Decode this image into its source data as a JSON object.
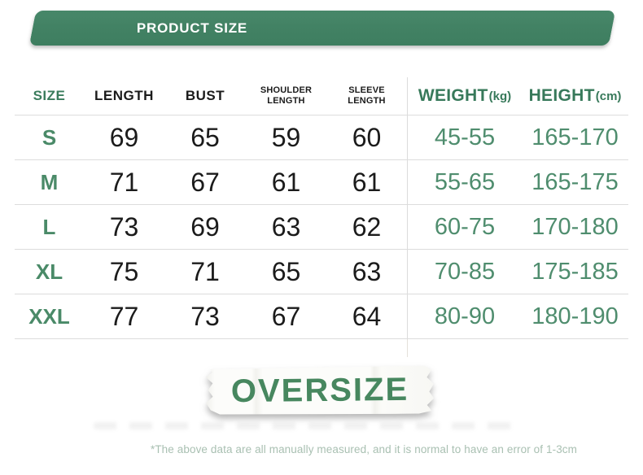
{
  "banner": {
    "title": "PRODUCT SIZE"
  },
  "table_headers": {
    "size": "SIZE",
    "length": "LENGTH",
    "bust": "BUST",
    "shoulder_line1": "SHOULDER",
    "shoulder_line2": "LENGTH",
    "sleeve_line1": "SLEEVE",
    "sleeve_line2": "LENGTH",
    "weight": "WEIGHT",
    "weight_unit": "(kg)",
    "height": "HEIGHT",
    "height_unit": "(cm)"
  },
  "chart_data": {
    "type": "table",
    "title": "PRODUCT SIZE",
    "columns": [
      "SIZE",
      "LENGTH",
      "BUST",
      "SHOULDER LENGTH",
      "SLEEVE LENGTH",
      "WEIGHT(kg)",
      "HEIGHT(cm)"
    ],
    "rows": [
      [
        "S",
        69,
        65,
        59,
        60,
        "45-55",
        "165-170"
      ],
      [
        "M",
        71,
        67,
        61,
        61,
        "55-65",
        "165-175"
      ],
      [
        "L",
        73,
        69,
        63,
        62,
        "60-75",
        "170-180"
      ],
      [
        "XL",
        75,
        71,
        65,
        63,
        "70-85",
        "175-185"
      ],
      [
        "XXL",
        77,
        73,
        67,
        64,
        "80-90",
        "180-190"
      ]
    ],
    "annotations": [
      "OVERSIZE"
    ]
  },
  "stamp": {
    "label": "OVERSIZE"
  },
  "footnote": {
    "text": "*The above data are all manually measured, and it is normal to have an error of 1-3cm"
  },
  "colors": {
    "banner_green": "#428264",
    "header_green": "#37795a",
    "size_label_green": "#4a8a68",
    "range_green": "#4f8d6e",
    "text_black": "#1b1b1b",
    "divider_gray": "#dcdcdc",
    "footnote_green": "#a9c0b2",
    "stamp_green": "#47875f",
    "paper_white": "#fcfcfa"
  }
}
